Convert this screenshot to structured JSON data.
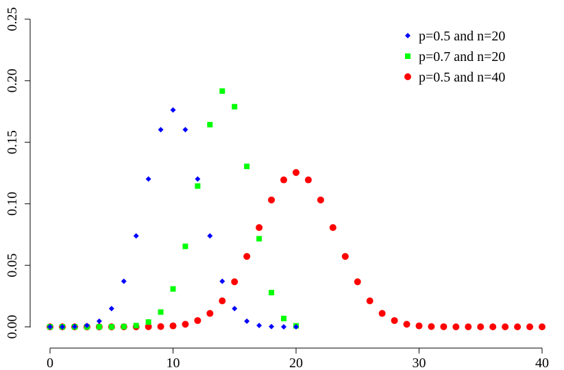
{
  "chart_data": {
    "type": "scatter",
    "title": "",
    "xlabel": "",
    "ylabel": "",
    "xlim": [
      0,
      40
    ],
    "ylim": [
      0,
      0.25
    ],
    "x_ticks": [
      {
        "value": 0,
        "label": "0"
      },
      {
        "value": 10,
        "label": "10"
      },
      {
        "value": 20,
        "label": "20"
      },
      {
        "value": 30,
        "label": "30"
      },
      {
        "value": 40,
        "label": "40"
      }
    ],
    "y_ticks": [
      {
        "value": 0,
        "label": "0.00"
      },
      {
        "value": 0.05,
        "label": "0.05"
      },
      {
        "value": 0.1,
        "label": "0.10"
      },
      {
        "value": 0.15,
        "label": "0.15"
      },
      {
        "value": 0.2,
        "label": "0.20"
      },
      {
        "value": 0.25,
        "label": "0.25"
      }
    ],
    "grid": false,
    "legend_position": "top-right",
    "series": [
      {
        "name": "p=0.5 and n=20",
        "color": "#0000ff",
        "marker": "diamond",
        "x": [
          0,
          1,
          2,
          3,
          4,
          5,
          6,
          7,
          8,
          9,
          10,
          11,
          12,
          13,
          14,
          15,
          16,
          17,
          18,
          19,
          20
        ],
        "y": [
          0.0,
          0.0,
          0.0002,
          0.0011,
          0.0046,
          0.0148,
          0.037,
          0.0739,
          0.1201,
          0.1602,
          0.1762,
          0.1602,
          0.1201,
          0.0739,
          0.037,
          0.0148,
          0.0046,
          0.0011,
          0.0002,
          0.0,
          0.0
        ]
      },
      {
        "name": "p=0.7 and n=20",
        "color": "#00ff00",
        "marker": "square",
        "x": [
          0,
          1,
          2,
          3,
          4,
          5,
          6,
          7,
          8,
          9,
          10,
          11,
          12,
          13,
          14,
          15,
          16,
          17,
          18,
          19,
          20
        ],
        "y": [
          0.0,
          0.0,
          0.0,
          0.0,
          0.0,
          0.0,
          0.0002,
          0.001,
          0.0039,
          0.012,
          0.0308,
          0.0654,
          0.1144,
          0.1643,
          0.1916,
          0.1789,
          0.1304,
          0.0716,
          0.0278,
          0.0068,
          0.0008
        ]
      },
      {
        "name": "p=0.5 and n=40",
        "color": "#ff0000",
        "marker": "circle",
        "x": [
          0,
          1,
          2,
          3,
          4,
          5,
          6,
          7,
          8,
          9,
          10,
          11,
          12,
          13,
          14,
          15,
          16,
          17,
          18,
          19,
          20,
          21,
          22,
          23,
          24,
          25,
          26,
          27,
          28,
          29,
          30,
          31,
          32,
          33,
          34,
          35,
          36,
          37,
          38,
          39,
          40
        ],
        "y": [
          0.0,
          0.0,
          0.0,
          0.0,
          0.0,
          0.0,
          0.0,
          0.0,
          0.0001,
          0.0002,
          0.0008,
          0.0021,
          0.0051,
          0.0109,
          0.0211,
          0.0366,
          0.0572,
          0.0807,
          0.1031,
          0.1194,
          0.1254,
          0.1194,
          0.1031,
          0.0807,
          0.0572,
          0.0366,
          0.0211,
          0.0109,
          0.0051,
          0.0021,
          0.0008,
          0.0002,
          0.0001,
          0.0,
          0.0,
          0.0,
          0.0,
          0.0,
          0.0,
          0.0,
          0.0
        ]
      }
    ]
  }
}
